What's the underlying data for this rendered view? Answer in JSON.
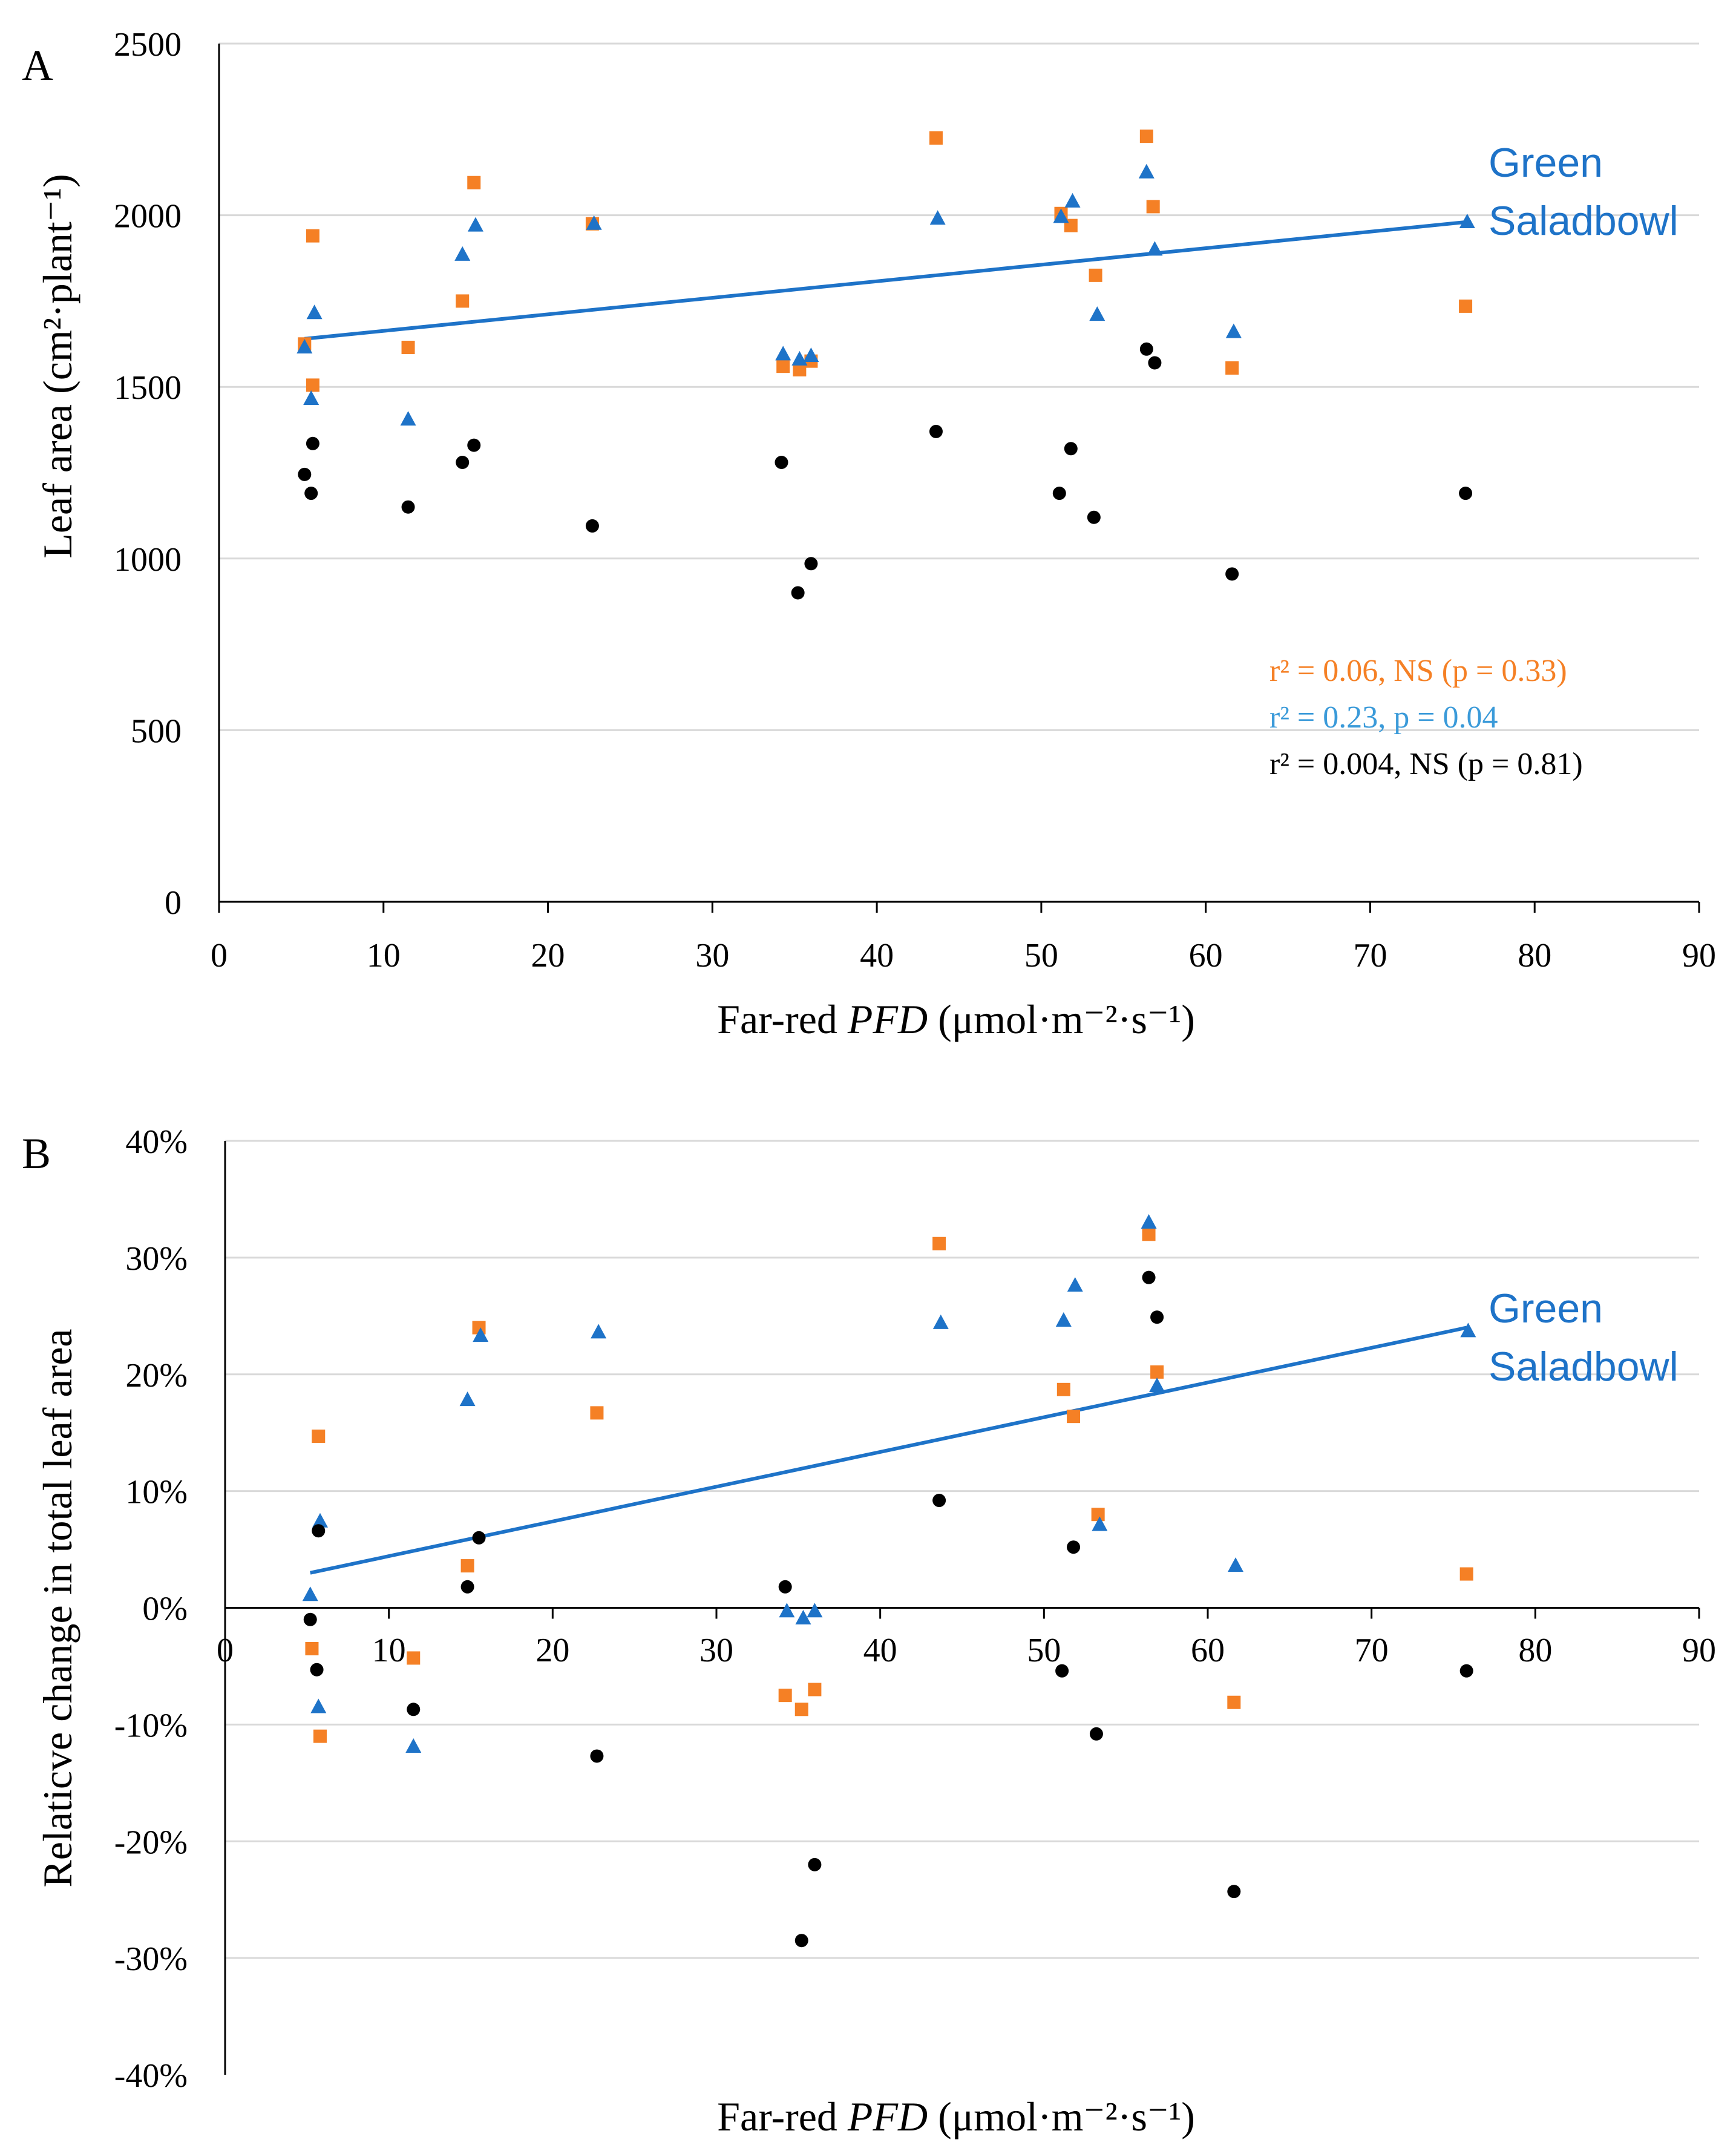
{
  "colors": {
    "square": "#F58025",
    "triangle": "#1E73C8",
    "circle": "#000000",
    "trend": "#1E73C8",
    "stat_blue": "#3A9AD9"
  },
  "chart_data": [
    {
      "type": "scatter",
      "panel_letter": "A",
      "xlabel_prefix": "Far-red ",
      "xlabel_italic": "PFD",
      "xlabel_suffix": " (μmol·m⁻²·s⁻¹)",
      "ylabel": "Leaf area (cm²·plant⁻¹)",
      "xlim": [
        0,
        90
      ],
      "ylim": [
        0,
        2500
      ],
      "x_ticks": [
        "0",
        "10",
        "20",
        "30",
        "40",
        "50",
        "60",
        "70",
        "80",
        "90"
      ],
      "y_ticks": [
        "0",
        "500",
        "1000",
        "1500",
        "2000",
        "2500"
      ],
      "series_label": [
        "Green",
        "Saladbowl"
      ],
      "stats": [
        "r² = 0.06, NS (p = 0.33)",
        "r² = 0.23, p = 0.04",
        "r² = 0.004, NS (p = 0.81)"
      ],
      "trendline": {
        "x": [
          5.2,
          75.8
        ],
        "y": [
          1640,
          1980
        ]
      },
      "series": [
        {
          "name": "orange squares",
          "marker": "square",
          "points": [
            [
              5.2,
              1625
            ],
            [
              5.7,
              1940
            ],
            [
              5.7,
              1505
            ],
            [
              11.5,
              1615
            ],
            [
              14.8,
              1750
            ],
            [
              15.5,
              2095
            ],
            [
              22.7,
              1975
            ],
            [
              34.3,
              1560
            ],
            [
              35.3,
              1550
            ],
            [
              36.0,
              1575
            ],
            [
              43.6,
              2225
            ],
            [
              51.2,
              2005
            ],
            [
              51.8,
              1970
            ],
            [
              53.3,
              1825
            ],
            [
              56.4,
              2230
            ],
            [
              56.8,
              2025
            ],
            [
              61.6,
              1555
            ],
            [
              75.8,
              1735
            ]
          ]
        },
        {
          "name": "blue triangles",
          "marker": "triangle",
          "points": [
            [
              5.2,
              1615
            ],
            [
              5.8,
              1715
            ],
            [
              5.6,
              1465
            ],
            [
              11.5,
              1405
            ],
            [
              14.8,
              1885
            ],
            [
              15.6,
              1970
            ],
            [
              22.8,
              1975
            ],
            [
              34.3,
              1595
            ],
            [
              35.3,
              1580
            ],
            [
              36.0,
              1590
            ],
            [
              43.7,
              1990
            ],
            [
              51.2,
              1995
            ],
            [
              51.9,
              2040
            ],
            [
              53.4,
              1710
            ],
            [
              56.4,
              2125
            ],
            [
              56.9,
              1900
            ],
            [
              61.7,
              1660
            ],
            [
              75.9,
              1980
            ]
          ]
        },
        {
          "name": "black circles",
          "marker": "circle",
          "points": [
            [
              5.2,
              1245
            ],
            [
              5.7,
              1335
            ],
            [
              5.6,
              1190
            ],
            [
              11.5,
              1150
            ],
            [
              14.8,
              1280
            ],
            [
              15.5,
              1330
            ],
            [
              22.7,
              1095
            ],
            [
              34.2,
              1280
            ],
            [
              35.2,
              900
            ],
            [
              36.0,
              985
            ],
            [
              43.6,
              1370
            ],
            [
              51.1,
              1190
            ],
            [
              51.8,
              1320
            ],
            [
              53.2,
              1120
            ],
            [
              56.4,
              1610
            ],
            [
              56.9,
              1570
            ],
            [
              61.6,
              955
            ],
            [
              75.8,
              1190
            ]
          ]
        }
      ]
    },
    {
      "type": "scatter",
      "panel_letter": "B",
      "xlabel_prefix": "Far-red ",
      "xlabel_italic": "PFD",
      "xlabel_suffix": " (μmol·m⁻²·s⁻¹)",
      "ylabel": "Relaticve change in total leaf area",
      "xlim": [
        0,
        90
      ],
      "ylim": [
        -40,
        40
      ],
      "x_ticks": [
        "0",
        "10",
        "20",
        "30",
        "40",
        "50",
        "60",
        "70",
        "80",
        "90"
      ],
      "y_ticks": [
        "-40%",
        "-30%",
        "-20%",
        "-10%",
        "0%",
        "10%",
        "20%",
        "30%",
        "40%"
      ],
      "series_label": [
        "Green",
        "Saladbowl"
      ],
      "trendline": {
        "x": [
          5.2,
          75.8
        ],
        "y": [
          3.0,
          24.0
        ]
      },
      "series": [
        {
          "name": "orange squares",
          "marker": "square",
          "points": [
            [
              5.3,
              -3.5
            ],
            [
              5.7,
              14.7
            ],
            [
              5.8,
              -11.0
            ],
            [
              11.5,
              -4.3
            ],
            [
              14.8,
              3.6
            ],
            [
              15.5,
              24.0
            ],
            [
              22.7,
              16.7
            ],
            [
              34.2,
              -7.5
            ],
            [
              35.2,
              -8.7
            ],
            [
              36.0,
              -7.0
            ],
            [
              43.6,
              31.2
            ],
            [
              51.2,
              18.7
            ],
            [
              51.8,
              16.4
            ],
            [
              53.3,
              8.0
            ],
            [
              56.4,
              32.0
            ],
            [
              56.9,
              20.2
            ],
            [
              61.6,
              -8.1
            ],
            [
              75.8,
              2.9
            ]
          ]
        },
        {
          "name": "blue triangles",
          "marker": "triangle",
          "points": [
            [
              5.2,
              1.1
            ],
            [
              5.8,
              7.4
            ],
            [
              5.7,
              -8.5
            ],
            [
              11.5,
              -11.9
            ],
            [
              14.8,
              17.8
            ],
            [
              15.6,
              23.3
            ],
            [
              22.8,
              23.6
            ],
            [
              34.3,
              -0.3
            ],
            [
              35.3,
              -0.9
            ],
            [
              36.0,
              -0.3
            ],
            [
              43.7,
              24.4
            ],
            [
              51.2,
              24.6
            ],
            [
              51.9,
              27.6
            ],
            [
              53.4,
              7.1
            ],
            [
              56.4,
              33.0
            ],
            [
              56.9,
              19.0
            ],
            [
              61.7,
              3.6
            ],
            [
              75.9,
              23.7
            ]
          ]
        },
        {
          "name": "black circles",
          "marker": "circle",
          "points": [
            [
              5.2,
              -1.0
            ],
            [
              5.7,
              6.6
            ],
            [
              5.6,
              -5.3
            ],
            [
              11.5,
              -8.7
            ],
            [
              14.8,
              1.8
            ],
            [
              15.5,
              6.0
            ],
            [
              22.7,
              -12.7
            ],
            [
              34.2,
              1.8
            ],
            [
              35.2,
              -28.5
            ],
            [
              36.0,
              -22.0
            ],
            [
              43.6,
              9.2
            ],
            [
              51.1,
              -5.4
            ],
            [
              51.8,
              5.2
            ],
            [
              53.2,
              -10.8
            ],
            [
              56.4,
              28.3
            ],
            [
              56.9,
              24.9
            ],
            [
              61.6,
              -24.3
            ],
            [
              75.8,
              -5.4
            ]
          ]
        }
      ]
    }
  ]
}
